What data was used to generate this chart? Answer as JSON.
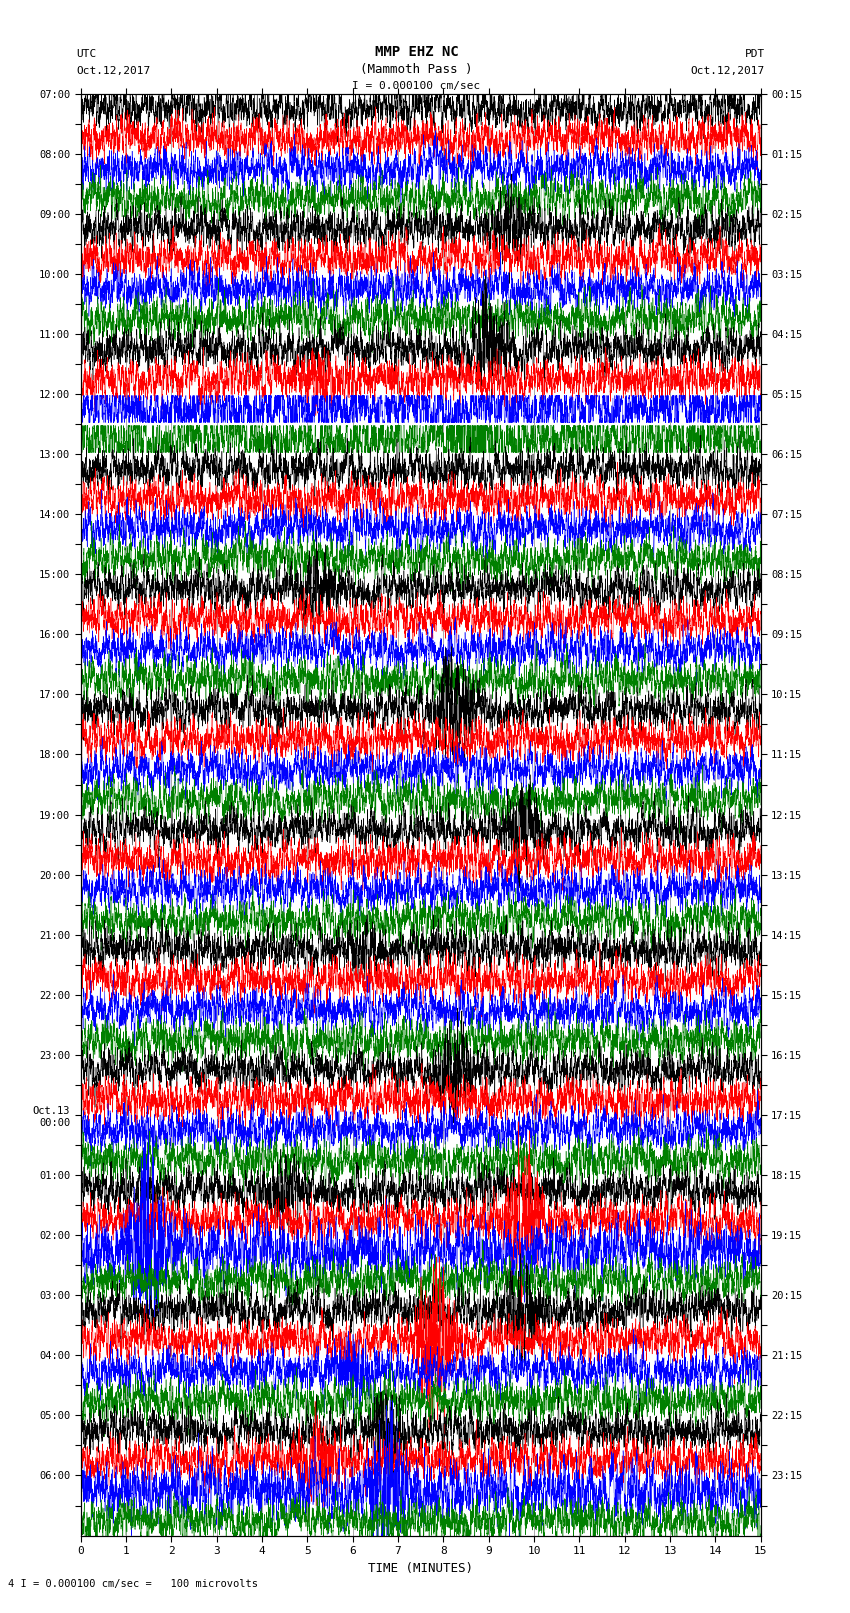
{
  "title_line1": "MMP EHZ NC",
  "title_line2": "(Mammoth Pass )",
  "scale_label": "I = 0.000100 cm/sec",
  "bottom_label": "4 I = 0.000100 cm/sec =   100 microvolts",
  "utc_label1": "UTC",
  "utc_label2": "Oct.12,2017",
  "pdt_label1": "PDT",
  "pdt_label2": "Oct.12,2017",
  "xlabel": "TIME (MINUTES)",
  "left_times_utc": [
    "07:00",
    "",
    "08:00",
    "",
    "09:00",
    "",
    "10:00",
    "",
    "11:00",
    "",
    "12:00",
    "",
    "13:00",
    "",
    "14:00",
    "",
    "15:00",
    "",
    "16:00",
    "",
    "17:00",
    "",
    "18:00",
    "",
    "19:00",
    "",
    "20:00",
    "",
    "21:00",
    "",
    "22:00",
    "",
    "23:00",
    "",
    "Oct.13\n00:00",
    "",
    "01:00",
    "",
    "02:00",
    "",
    "03:00",
    "",
    "04:00",
    "",
    "05:00",
    "",
    "06:00",
    ""
  ],
  "right_times_pdt": [
    "00:15",
    "",
    "01:15",
    "",
    "02:15",
    "",
    "03:15",
    "",
    "04:15",
    "",
    "05:15",
    "",
    "06:15",
    "",
    "07:15",
    "",
    "08:15",
    "",
    "09:15",
    "",
    "10:15",
    "",
    "11:15",
    "",
    "12:15",
    "",
    "13:15",
    "",
    "14:15",
    "",
    "15:15",
    "",
    "16:15",
    "",
    "17:15",
    "",
    "18:15",
    "",
    "19:15",
    "",
    "20:15",
    "",
    "21:15",
    "",
    "22:15",
    "",
    "23:15",
    ""
  ],
  "n_rows": 48,
  "colors_cycle": [
    "black",
    "red",
    "blue",
    "green"
  ],
  "bg_color": "white",
  "x_ticks": [
    0,
    1,
    2,
    3,
    4,
    5,
    6,
    7,
    8,
    9,
    10,
    11,
    12,
    13,
    14,
    15
  ],
  "fig_width": 8.5,
  "fig_height": 16.13,
  "dpi": 100
}
